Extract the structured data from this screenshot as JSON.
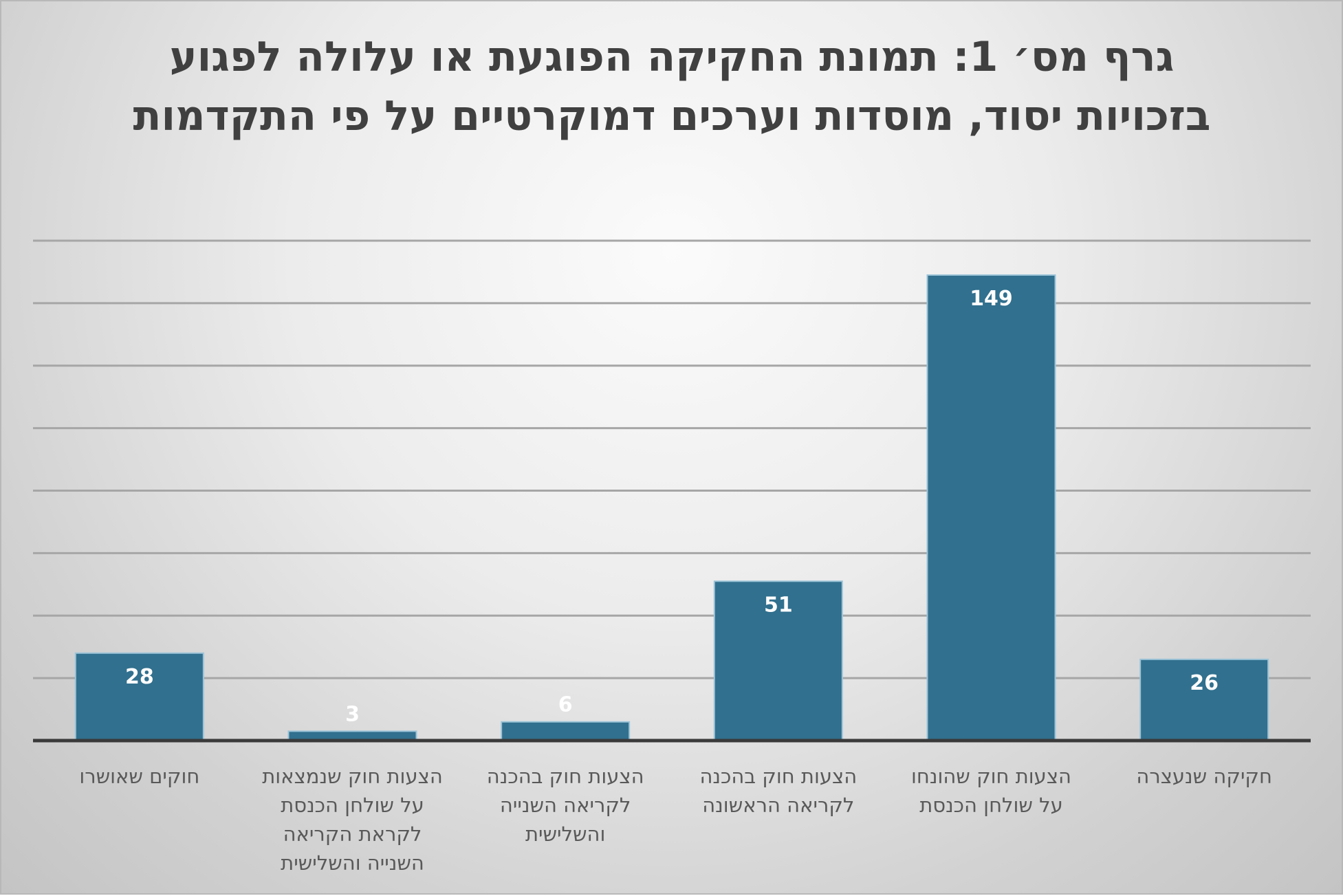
{
  "chart_data": {
    "type": "bar",
    "title": "גרף מס׳ 1: תמונת החקיקה הפוגעת או עלולה לפגוע בזכויות יסוד, מוסדות וערכים דמוקרטיים על פי התקדמות",
    "categories": [
      "חקיקה שנעצרה",
      "הצעות חוק שהונחו על שולחן הכנסת",
      "הצעות חוק בהכנה לקריאה הראשונה",
      "הצעות חוק בהכנה לקריאה השנייה והשלישית",
      "הצעות חוק שנמצאות על שולחן הכנסת לקראת הקריאה השנייה והשלישית",
      "חוקים שאושרו"
    ],
    "category_lines": [
      [
        "חקיקה שנעצרה"
      ],
      [
        "הצעות חוק שהונחו",
        "על שולחן הכנסת"
      ],
      [
        "הצעות חוק בהכנה",
        "לקריאה הראשונה"
      ],
      [
        "הצעות חוק בהכנה",
        "לקריאה השנייה",
        "והשלישית"
      ],
      [
        "הצעות חוק שנמצאות",
        "על שולחן הכנסת",
        "לקראת הקריאה",
        "השנייה והשלישית"
      ],
      [
        "חוקים שאושרו"
      ]
    ],
    "values": [
      26,
      149,
      51,
      6,
      3,
      28
    ],
    "ylim": [
      0,
      160
    ],
    "gridline_step": 20,
    "category_order": "right-to-left",
    "grid": true,
    "legend": "none",
    "xlabel": "",
    "ylabel": "",
    "colors": {
      "bar": "#31708E",
      "bar_border": "#9cc4d8",
      "value_label": "#ffffff",
      "grid": "#a6a6a6",
      "axis": "#3a3a3a",
      "category_label": "#595959",
      "title": "#404040"
    }
  }
}
